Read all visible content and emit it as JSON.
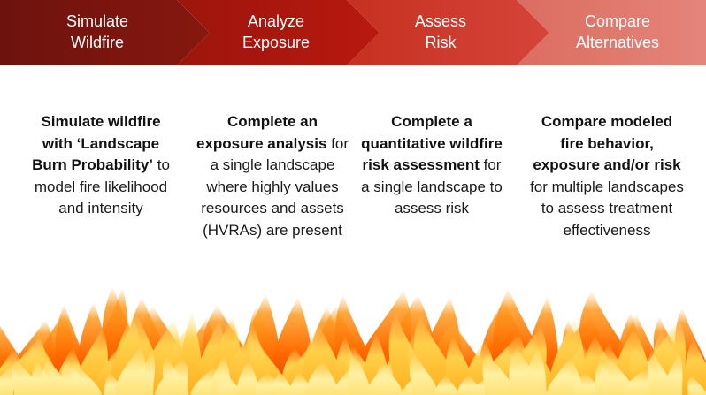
{
  "colors": {
    "step1": "#7a1410",
    "step2": "#b0170f",
    "step3": "#cf3b30",
    "step4": "#e0796f",
    "text": "#1a1a1a"
  },
  "steps": [
    {
      "title": "Simulate\nWildfire",
      "description": [
        {
          "text": "Simulate wildfire with ‘Landscape Burn Probability’",
          "bold": true
        },
        {
          "text": " to model fire likelihood and intensity",
          "bold": false
        }
      ]
    },
    {
      "title": "Analyze\nExposure",
      "description": [
        {
          "text": "Complete an exposure analysis",
          "bold": true
        },
        {
          "text": " for a single landscape where highly values resources and assets (HVRAs) are present",
          "bold": false
        }
      ]
    },
    {
      "title": "Assess\nRisk",
      "description": [
        {
          "text": "Complete a quantitative wildfire risk assessment",
          "bold": true
        },
        {
          "text": " for a single landscape to assess risk",
          "bold": false
        }
      ]
    },
    {
      "title": "Compare\nAlternatives",
      "description": [
        {
          "text": "Compare modeled fire behavior, exposure and/or risk",
          "bold": true
        },
        {
          "text": " for multiple landscapes to assess treatment effectiveness",
          "bold": false
        }
      ]
    }
  ],
  "decoration": {
    "bottom_image": "flames"
  }
}
